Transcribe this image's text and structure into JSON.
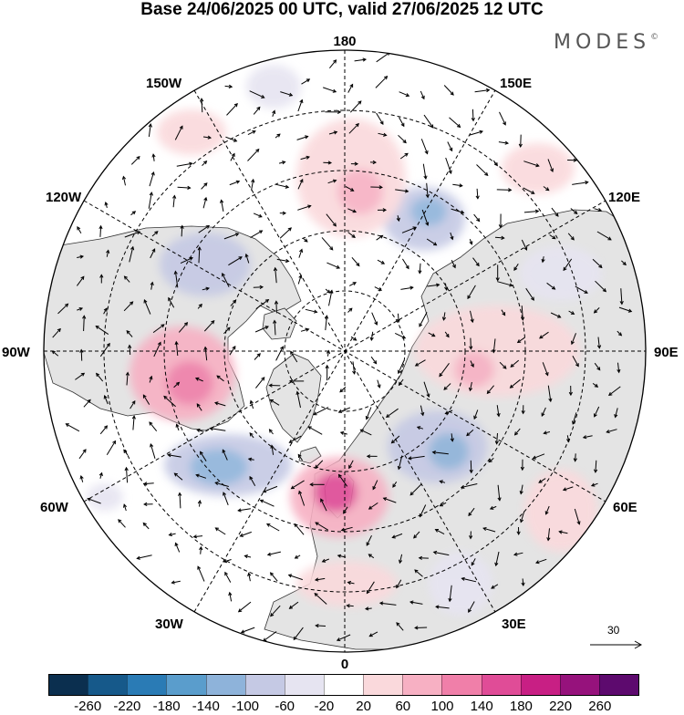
{
  "title": "Base 24/06/2025 00 UTC, valid 27/06/2025 12 UTC",
  "brand": "MODES",
  "brand_mark": "©",
  "longitude_labels": {
    "top": "180",
    "bottom": "0",
    "left": "90W",
    "right": "90E",
    "upper_left_1": "150W",
    "upper_left_2": "120W",
    "upper_right_1": "150E",
    "upper_right_2": "120E",
    "lower_left_1": "60W",
    "lower_left_2": "30W",
    "lower_right_1": "60E",
    "lower_right_2": "30E"
  },
  "reference_vector": "30",
  "colorbar": {
    "colors": [
      "#0b2f4f",
      "#16598a",
      "#2a7bb5",
      "#5a9dcc",
      "#8eb3da",
      "#c5c9e4",
      "#e6e4f1",
      "#ffffff",
      "#fad9dc",
      "#f7b0c3",
      "#f07fa9",
      "#e04c97",
      "#c81f84",
      "#96127c",
      "#5d0a6e"
    ],
    "ticks": [
      "-260",
      "-220",
      "-180",
      "-140",
      "-100",
      "-60",
      "-20",
      "20",
      "60",
      "100",
      "140",
      "180",
      "220",
      "260"
    ]
  },
  "anomaly_regions": [
    {
      "name": "north-america-positive",
      "level": "+140"
    },
    {
      "name": "british-isles-positive",
      "level": "+140"
    },
    {
      "name": "north-atlantic-negative",
      "level": "-100"
    },
    {
      "name": "scandinavia-negative",
      "level": "-100"
    },
    {
      "name": "east-siberia-negative",
      "level": "-100"
    },
    {
      "name": "central-siberia-positive",
      "level": "+60"
    },
    {
      "name": "bering-positive",
      "level": "+60"
    },
    {
      "name": "alaska-negative",
      "level": "-60"
    }
  ]
}
